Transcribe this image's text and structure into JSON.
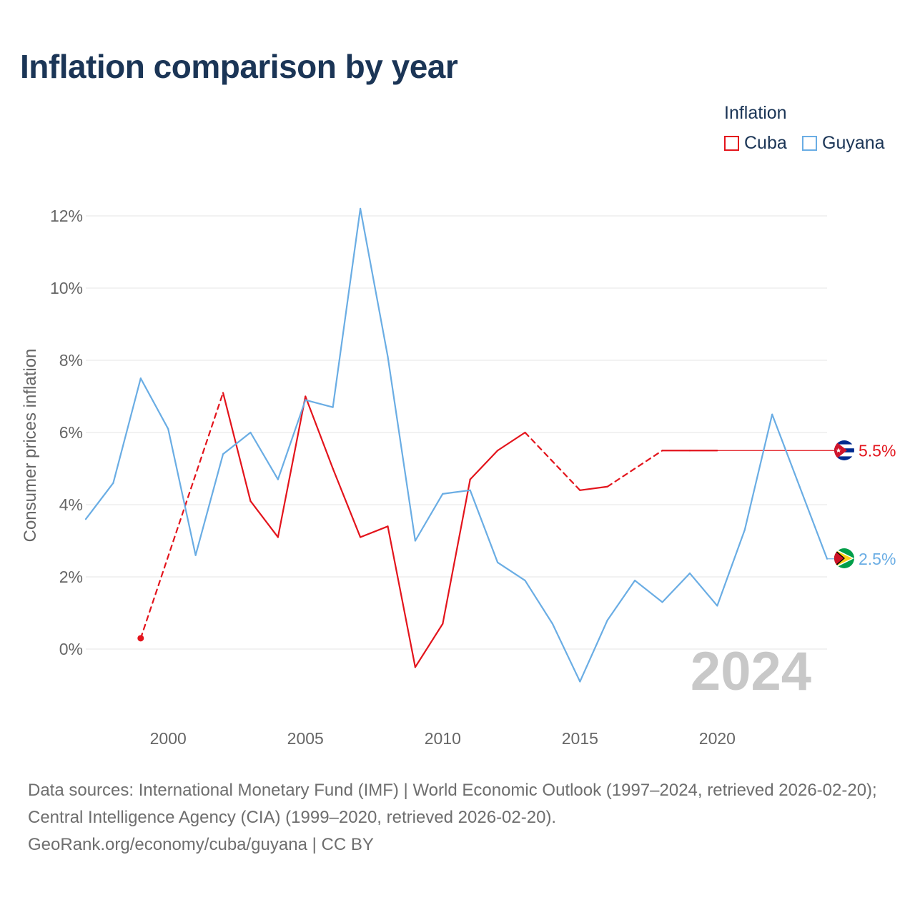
{
  "title": "Inflation comparison by year",
  "legend": {
    "title": "Inflation",
    "items": [
      {
        "label": "Cuba",
        "color": "#e3141c"
      },
      {
        "label": "Guyana",
        "color": "#6aade4"
      }
    ]
  },
  "year_watermark": "2024",
  "footer": {
    "source": "Data sources: International Monetary Fund (IMF) | World Economic Outlook (1997–2024, retrieved 2026-02-20); Central Intelligence Agency (CIA) (1999–2020, retrieved 2026-02-20).",
    "credit": "GeoRank.org/economy/cuba/guyana | CC BY"
  },
  "chart_data": {
    "type": "line",
    "title": "Inflation comparison by year",
    "xlabel": "",
    "ylabel": "Consumer prices inflation",
    "xlim": [
      1997,
      2024
    ],
    "ylim": [
      -2,
      12.5
    ],
    "x_ticks": [
      2000,
      2005,
      2010,
      2015,
      2020
    ],
    "y_ticks": [
      0,
      2,
      4,
      6,
      8,
      10,
      12
    ],
    "y_tick_labels": [
      "0%",
      "2%",
      "4%",
      "6%",
      "8%",
      "10%",
      "12%"
    ],
    "grid": true,
    "legend_position": "top-right",
    "series": [
      {
        "name": "Cuba",
        "color": "#e3141c",
        "end_label": "5.5%",
        "end_value": 5.5,
        "points": [
          {
            "x": 1999,
            "y": 0.3
          },
          {
            "x": 2002,
            "y": 7.1
          },
          {
            "x": 2003,
            "y": 4.1
          },
          {
            "x": 2004,
            "y": 3.1
          },
          {
            "x": 2005,
            "y": 7.0
          },
          {
            "x": 2006,
            "y": 5.0
          },
          {
            "x": 2007,
            "y": 3.1
          },
          {
            "x": 2008,
            "y": 3.4
          },
          {
            "x": 2009,
            "y": -0.5
          },
          {
            "x": 2010,
            "y": 0.7
          },
          {
            "x": 2011,
            "y": 4.7
          },
          {
            "x": 2012,
            "y": 5.5
          },
          {
            "x": 2013,
            "y": 6.0
          },
          {
            "x": 2015,
            "y": 4.4
          },
          {
            "x": 2016,
            "y": 4.5
          },
          {
            "x": 2018,
            "y": 5.5
          },
          {
            "x": 2019,
            "y": 5.5
          },
          {
            "x": 2020,
            "y": 5.5
          }
        ]
      },
      {
        "name": "Guyana",
        "color": "#6aade4",
        "end_label": "2.5%",
        "end_value": 2.5,
        "points": [
          {
            "x": 1997,
            "y": 3.6
          },
          {
            "x": 1998,
            "y": 4.6
          },
          {
            "x": 1999,
            "y": 7.5
          },
          {
            "x": 2000,
            "y": 6.1
          },
          {
            "x": 2001,
            "y": 2.6
          },
          {
            "x": 2002,
            "y": 5.4
          },
          {
            "x": 2003,
            "y": 6.0
          },
          {
            "x": 2004,
            "y": 4.7
          },
          {
            "x": 2005,
            "y": 6.9
          },
          {
            "x": 2006,
            "y": 6.7
          },
          {
            "x": 2007,
            "y": 12.2
          },
          {
            "x": 2008,
            "y": 8.1
          },
          {
            "x": 2009,
            "y": 3.0
          },
          {
            "x": 2010,
            "y": 4.3
          },
          {
            "x": 2011,
            "y": 4.4
          },
          {
            "x": 2012,
            "y": 2.4
          },
          {
            "x": 2013,
            "y": 1.9
          },
          {
            "x": 2014,
            "y": 0.7
          },
          {
            "x": 2015,
            "y": -0.9
          },
          {
            "x": 2016,
            "y": 0.8
          },
          {
            "x": 2017,
            "y": 1.9
          },
          {
            "x": 2018,
            "y": 1.3
          },
          {
            "x": 2019,
            "y": 2.1
          },
          {
            "x": 2020,
            "y": 1.2
          },
          {
            "x": 2021,
            "y": 3.3
          },
          {
            "x": 2022,
            "y": 6.5
          },
          {
            "x": 2023,
            "y": 4.5
          },
          {
            "x": 2024,
            "y": 2.5
          }
        ]
      }
    ]
  }
}
